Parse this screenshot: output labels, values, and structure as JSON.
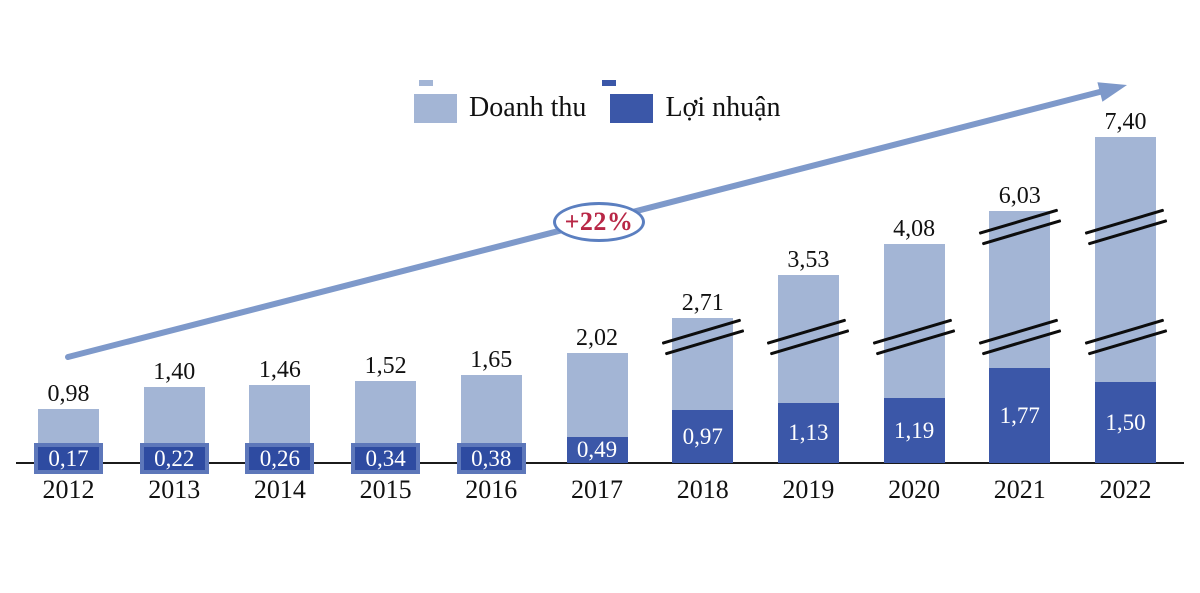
{
  "chart_data": {
    "type": "bar",
    "title": "",
    "xlabel": "",
    "ylabel": "",
    "ylim": [
      0,
      7.4
    ],
    "grid": false,
    "legend_position": "top-center",
    "categories": [
      "2012",
      "2013",
      "2014",
      "2015",
      "2016",
      "2017",
      "2018",
      "2019",
      "2020",
      "2021",
      "2022"
    ],
    "series": [
      {
        "name": "Doanh thu",
        "values": [
          0.98,
          1.4,
          1.46,
          1.52,
          1.65,
          2.02,
          2.71,
          3.53,
          4.08,
          6.03,
          7.4
        ],
        "labels": [
          "0,98",
          "1,40",
          "1,46",
          "1,52",
          "1,65",
          "2,02",
          "2,71",
          "3,53",
          "4,08",
          "6,03",
          "7,40"
        ],
        "color": "#a3b5d5"
      },
      {
        "name": "Lợi nhuận",
        "values": [
          0.17,
          0.22,
          0.26,
          0.34,
          0.38,
          0.49,
          0.97,
          1.13,
          1.19,
          1.77,
          1.5
        ],
        "labels": [
          "0,17",
          "0,22",
          "0,26",
          "0,34",
          "0,38",
          "0,49",
          "0,97",
          "1,13",
          "1,19",
          "1,77",
          "1,50"
        ],
        "color": "#3b57a8"
      }
    ],
    "annotations": [
      "+22%"
    ],
    "axis_breaks": {
      "single_break_years": [
        "2018",
        "2019",
        "2020"
      ],
      "double_break_years": [
        "2021",
        "2022"
      ]
    }
  },
  "colors": {
    "revenue_bar": "#a3b5d5",
    "profit_bar": "#3b57a8",
    "profit_badge_fill": "#2e4ba1",
    "profit_badge_border": "#5d77ba",
    "arrow": "#7e99ca",
    "annotation_text": "#b82746",
    "annotation_border": "#5b7fc0",
    "axis_line": "#1b1b1b",
    "text": "#111111"
  }
}
